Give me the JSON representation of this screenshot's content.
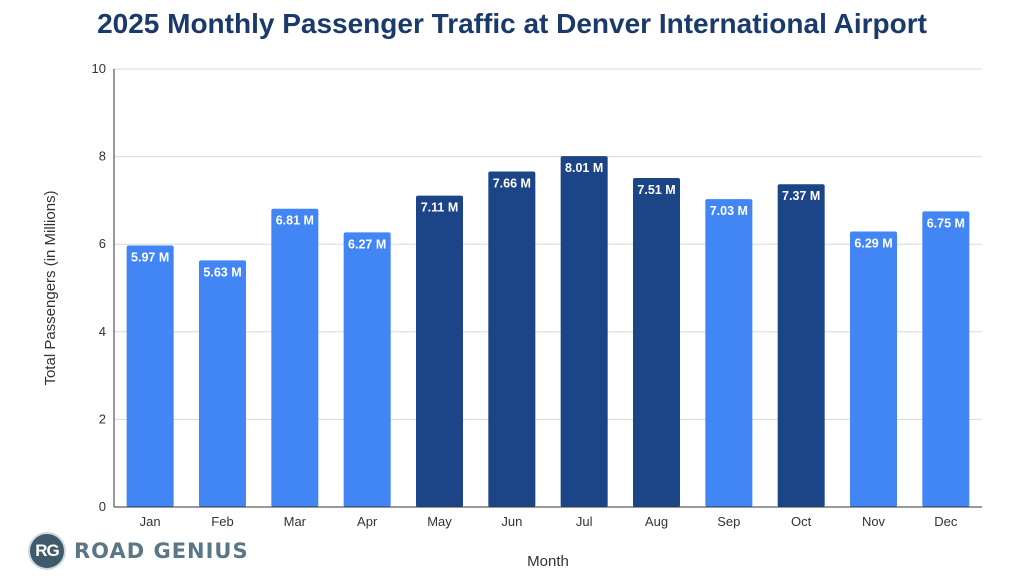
{
  "chart_data": {
    "type": "bar",
    "title": "2025 Monthly Passenger Traffic at Denver International Airport",
    "xlabel": "Month",
    "ylabel": "Total Passengers (in Millions)",
    "ylim": [
      0,
      10
    ],
    "yticks": [
      0,
      2,
      4,
      6,
      8,
      10
    ],
    "grid": true,
    "categories": [
      "Jan",
      "Feb",
      "Mar",
      "Apr",
      "May",
      "Jun",
      "Jul",
      "Aug",
      "Sep",
      "Oct",
      "Nov",
      "Dec"
    ],
    "values": [
      5.97,
      5.63,
      6.81,
      6.27,
      7.11,
      7.66,
      8.01,
      7.51,
      7.03,
      7.37,
      6.29,
      6.75
    ],
    "labels": [
      "5.97 M",
      "5.63 M",
      "6.81 M",
      "6.27 M",
      "7.11 M",
      "7.66 M",
      "8.01 M",
      "7.51 M",
      "7.03 M",
      "7.37 M",
      "6.29 M",
      "6.75 M"
    ],
    "highlight": [
      false,
      false,
      false,
      false,
      true,
      true,
      true,
      true,
      false,
      true,
      false,
      false
    ],
    "colors": {
      "base": "#4285f4",
      "highlight": "#1c4587",
      "label": "#ffffff",
      "grid": "#d9d9d9",
      "axis": "#333333"
    }
  },
  "brand": {
    "logo_text": "RG",
    "name": "ROAD GENIUS"
  }
}
